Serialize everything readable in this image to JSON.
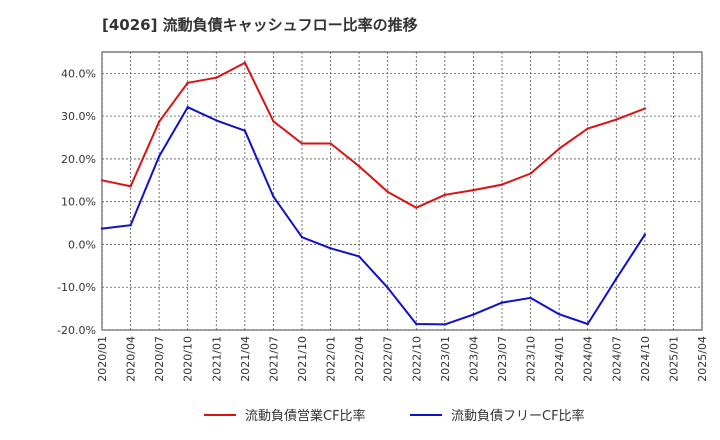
{
  "chart_data": {
    "type": "line",
    "title": "[4026]  流動負債キャッシュフロー比率の推移",
    "ylim": [
      -20,
      45
    ],
    "yticks": [
      -20,
      -10,
      0,
      10,
      20,
      30,
      40
    ],
    "ytick_labels": [
      "-20.0%",
      "-10.0%",
      "0.0%",
      "10.0%",
      "20.0%",
      "30.0%",
      "40.0%"
    ],
    "x": [
      "2020/01",
      "2020/04",
      "2020/07",
      "2020/10",
      "2021/01",
      "2021/04",
      "2021/07",
      "2021/10",
      "2022/01",
      "2022/04",
      "2022/07",
      "2022/10",
      "2023/01",
      "2023/04",
      "2023/07",
      "2023/10",
      "2024/01",
      "2024/04",
      "2024/07",
      "2024/10",
      "2025/01",
      "2025/04"
    ],
    "grid": true,
    "legend_position": "bottom",
    "series": [
      {
        "name": "流動負債営業CF比率",
        "color": "#dd1111",
        "values": [
          15.0,
          13.6,
          28.7,
          37.8,
          39.0,
          42.5,
          28.8,
          23.6,
          23.6,
          18.3,
          12.3,
          8.6,
          11.6,
          12.7,
          14.0,
          16.6,
          22.4,
          27.1,
          29.2,
          31.8,
          null,
          null
        ]
      },
      {
        "name": "流動負債フリーCF比率",
        "color": "#1111cc",
        "values": [
          3.7,
          4.5,
          20.6,
          32.1,
          29.0,
          26.6,
          11.2,
          1.7,
          -0.9,
          -2.8,
          -10.1,
          -18.6,
          -18.7,
          -16.4,
          -13.6,
          -12.5,
          -16.3,
          -18.6,
          -8.0,
          2.3,
          null,
          null
        ]
      }
    ]
  }
}
